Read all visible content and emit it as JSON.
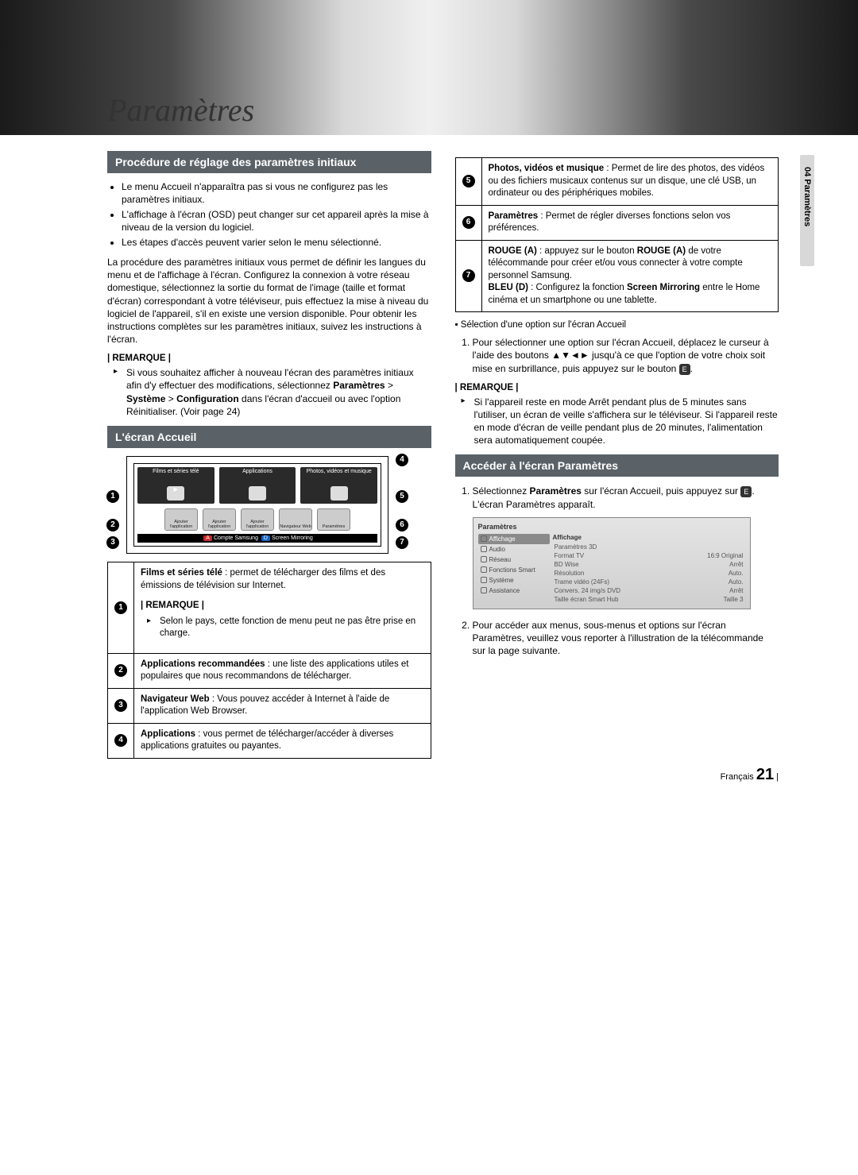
{
  "headerTitle": "Paramètres",
  "sideTab": "04   Paramètres",
  "left": {
    "section1": {
      "title": "Procédure de réglage des paramètres initiaux",
      "bullets": [
        "Le menu Accueil n'apparaîtra pas si vous ne configurez pas les paramètres initiaux.",
        "L'affichage à l'écran (OSD) peut changer sur cet appareil après la mise à niveau de la version du logiciel.",
        "Les étapes d'accès peuvent varier selon le menu sélectionné."
      ],
      "para": "La procédure des paramètres initiaux vous permet de définir les langues du menu et de l'affichage à l'écran. Configurez la connexion à votre réseau domestique, sélectionnez la sortie du format de l'image (taille et format d'écran) correspondant à votre téléviseur, puis effectuez la mise à niveau du logiciel de l'appareil, s'il en existe une version disponible. Pour obtenir les instructions complètes sur les paramètres initiaux, suivez les instructions à l'écran.",
      "remarkLabel": "| REMARQUE |",
      "remarkItem": "Si vous souhaitez afficher à nouveau l'écran des paramètres initiaux afin d'y effectuer des modifications, sélectionnez Paramètres > Système > Configuration dans l'écran d'accueil ou avec l'option Réinitialiser. (Voir page 24)",
      "remarkBold1": "Paramètres",
      "remarkBold2": "Système",
      "remarkBold3": "Configuration"
    },
    "section2": {
      "title": "L'écran Accueil",
      "diagram": {
        "tiles": [
          "Films et séries télé",
          "Applications",
          "Photos, vidéos et musique"
        ],
        "smallLabels": [
          "Ajouter l'application",
          "Ajouter l'application",
          "Ajouter l'application",
          "Navigateur Web",
          "Paramètres"
        ],
        "bottomA": "A",
        "bottomALabel": "Compte Samsung",
        "bottomD": "D",
        "bottomDLabel": "Screen Mirroring"
      },
      "rows": [
        {
          "n": "1",
          "html": "<b>Films et séries télé</b> : permet de télécharger des films et des émissions de télévision sur Internet.<div class='remark-label'>| REMARQUE |</div><ul class='remark-list'><li>Selon le pays, cette fonction de menu peut ne pas être prise en charge.</li></ul>"
        },
        {
          "n": "2",
          "html": "<b>Applications recommandées</b> : une liste des applications utiles et populaires que nous recommandons de télécharger."
        },
        {
          "n": "3",
          "html": "<b>Navigateur Web</b> : Vous pouvez accéder à Internet à l'aide de l'application Web Browser."
        },
        {
          "n": "4",
          "html": "<b>Applications</b> : vous permet de télécharger/accéder à diverses applications gratuites ou payantes."
        }
      ]
    }
  },
  "right": {
    "topRows": [
      {
        "n": "5",
        "html": "<b>Photos, vidéos et musique</b> : Permet de lire des photos, des vidéos ou des fichiers musicaux contenus sur un disque, une clé USB, un ordinateur ou des périphériques mobiles."
      },
      {
        "n": "6",
        "html": "<b>Paramètres</b> : Permet de régler diverses fonctions selon vos préférences."
      },
      {
        "n": "7",
        "html": "<b>ROUGE (A)</b> : appuyez sur le bouton <b>ROUGE (A)</b> de votre télécommande pour créer et/ou vous connecter à votre compte personnel Samsung.<br><b>BLEU (D)</b> : Configurez la fonction <b>Screen Mirroring</b> entre le Home cinéma et un smartphone ou une tablette."
      }
    ],
    "selTitle": "Sélection d'une option sur l'écran Accueil",
    "selStep": "Pour sélectionner une option sur l'écran Accueil, déplacez le curseur à l'aide des boutons ▲▼◄► jusqu'à ce que l'option de votre choix soit mise en surbrillance, puis appuyez sur le bouton ",
    "enterGlyph": "E",
    "selStepEnd": ".",
    "remarkLabel": "| REMARQUE |",
    "remarkItem": "Si l'appareil reste en mode Arrêt pendant plus de 5 minutes sans l'utiliser, un écran de veille s'affichera sur le téléviseur. Si l'appareil reste en mode d'écran de veille pendant plus de 20 minutes, l'alimentation sera automatiquement coupée.",
    "section3": {
      "title": "Accéder à l'écran Paramètres",
      "step1a": "Sélectionnez ",
      "step1bold": "Paramètres",
      "step1b": " sur l'écran Accueil, puis appuyez sur ",
      "step1c": ". L'écran Paramètres apparaît.",
      "screenshot": {
        "hdr": "Paramètres",
        "menu": [
          "Affichage",
          "Audio",
          "Réseau",
          "Fonctions Smart",
          "Système",
          "Assistance"
        ],
        "panelTitle": "Affichage",
        "rows": [
          [
            "Paramètres 3D",
            ""
          ],
          [
            "Format TV",
            "16:9 Original"
          ],
          [
            "BD Wise",
            "Arrêt"
          ],
          [
            "Résolution",
            "Auto."
          ],
          [
            "Trame vidéo (24Fs)",
            "Auto."
          ],
          [
            "Convers. 24 img/s DVD",
            "Arrêt"
          ],
          [
            "Taille écran Smart Hub",
            "Taille 3"
          ]
        ]
      },
      "step2": "Pour accéder aux menus, sous-menus et options sur l'écran Paramètres, veuillez vous reporter à l'illustration de la télécommande sur la page suivante."
    }
  },
  "footer": {
    "lang": "Français",
    "page": "21"
  }
}
